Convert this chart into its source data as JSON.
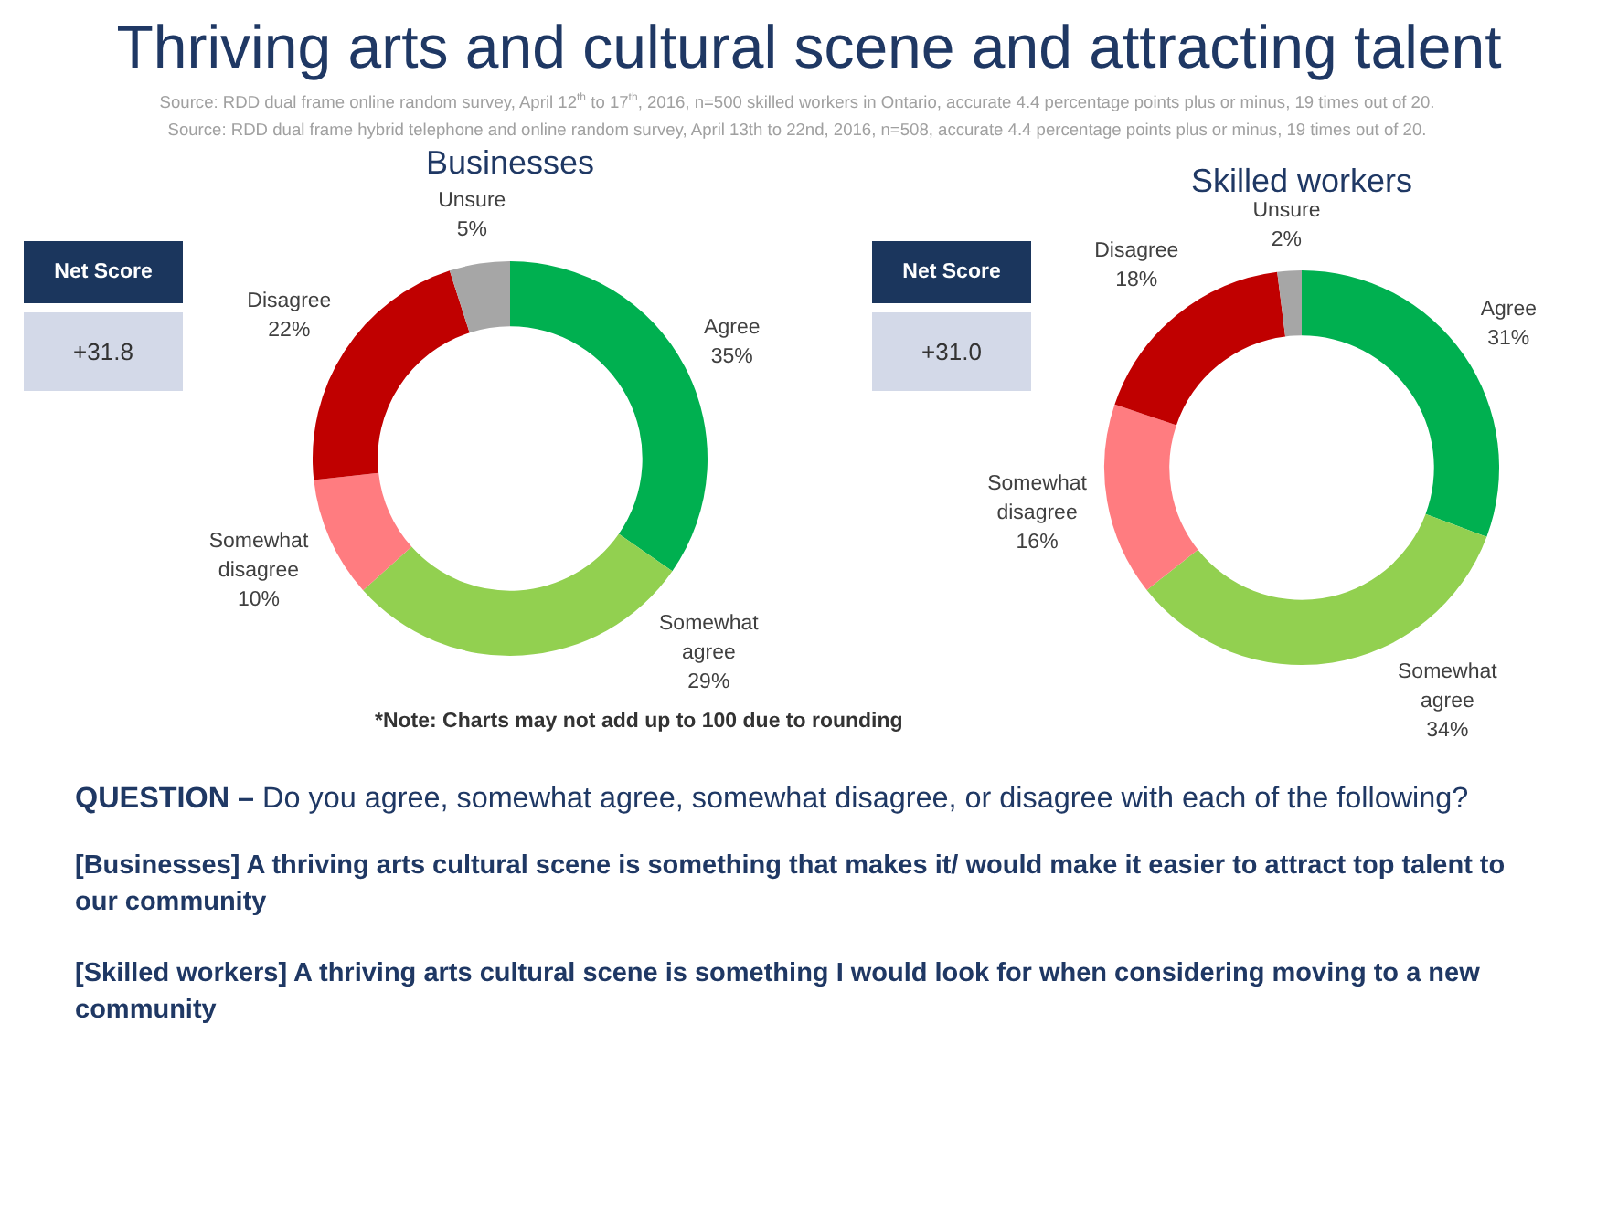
{
  "chart_data": [
    {
      "type": "other",
      "title": "Thriving arts and cultural scene and attracting talent",
      "annotations": [
        "Source: RDD dual frame online random survey, April 12$^{th}$ to 17$^{th}$, 2016, n=500 skilled workers in Ontario, accurate 4.4 percentage points plus or minus, 19 times out of 20.",
        "Source: RDD dual frame hybrid telephone and online random survey, April 13th to 22nd, 2016, n=508, accurate 4.4 percentage points plus or minus, 19 times out of 20."
      ]
    },
    {
      "type": "donut",
      "title": "Businesses",
      "categories": [
        "Agree",
        "Somewhat agree",
        "Somewhat disagree",
        "Disagree",
        "Unsure"
      ],
      "values": [
        35,
        29,
        10,
        22,
        5
      ],
      "value_labels": [
        "35%",
        "29%",
        "10%",
        "22%",
        "5%"
      ],
      "colors": [
        "#00b050",
        "#92d050",
        "#ff7c80",
        "#c00000",
        "#a6a6a6"
      ],
      "annotations": [
        "Net Score",
        "+31.8"
      ]
    },
    {
      "type": "donut",
      "title": "Skilled workers",
      "categories": [
        "Agree",
        "Somewhat agree",
        "Somewhat disagree",
        "Disagree",
        "Unsure"
      ],
      "values": [
        31,
        34,
        16,
        18,
        2
      ],
      "value_labels": [
        "31%",
        "34%",
        "16%",
        "18%",
        "2%"
      ],
      "colors": [
        "#00b050",
        "#92d050",
        "#ff7c80",
        "#c00000",
        "#a6a6a6"
      ],
      "annotations": [
        "Net Score",
        "+31.0"
      ]
    },
    {
      "type": "other",
      "annotations": [
        "*Note: Charts may not add up to 100 due to rounding",
        "QUESTION –",
        "Do you agree, somewhat agree, somewhat disagree, or disagree with each of the following?",
        "[Businesses] A thriving arts cultural scene is something that makes it/ would make it easier to attract top talent to our community",
        "[Skilled workers] A thriving arts cultural scene is something I would look for when considering moving to a new community"
      ]
    }
  ]
}
